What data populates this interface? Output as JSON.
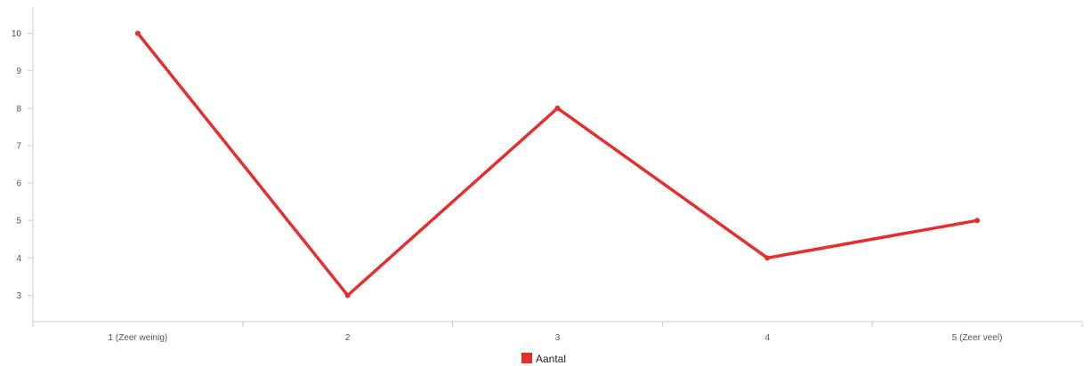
{
  "chart_data": {
    "type": "line",
    "categories": [
      "1 (Zeer weinig)",
      "2",
      "3",
      "4",
      "5 (Zeer veel)"
    ],
    "series": [
      {
        "name": "Aantal",
        "values": [
          10,
          3,
          8,
          4,
          5
        ],
        "color": "#e3302f"
      }
    ],
    "yticks": [
      3,
      4,
      5,
      6,
      7,
      8,
      9,
      10
    ],
    "ylim": [
      2.3,
      10.7
    ],
    "grid": false,
    "legend_position": "bottom-center",
    "colors": {
      "axis": "#cccccc",
      "tick_text": "#555555",
      "legend_text": "#222222"
    }
  }
}
